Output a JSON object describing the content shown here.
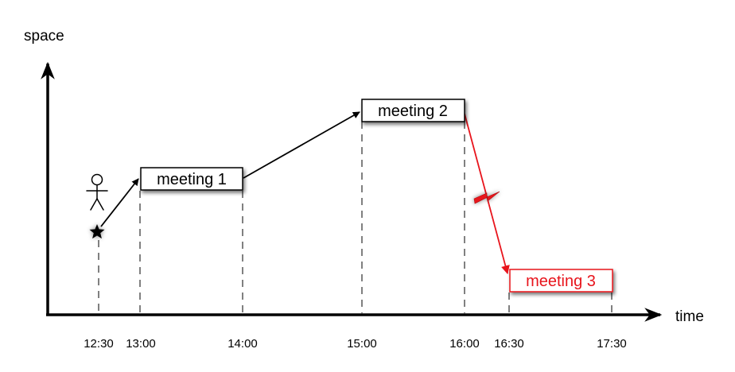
{
  "axes": {
    "x_label": "time",
    "y_label": "space"
  },
  "ticks": [
    "12:30",
    "13:00",
    "14:00",
    "15:00",
    "16:00",
    "16:30",
    "17:30"
  ],
  "meetings": [
    {
      "label": "meeting 1",
      "start": "13:00",
      "end": "14:00",
      "status": "normal"
    },
    {
      "label": "meeting 2",
      "start": "15:00",
      "end": "16:00",
      "status": "normal"
    },
    {
      "label": "meeting 3",
      "start": "16:30",
      "end": "17:30",
      "status": "conflict"
    }
  ],
  "start_time": "12:30",
  "icons": {
    "person": "stick-figure-icon",
    "start": "star-icon",
    "conflict": "lightning-bolt-icon"
  },
  "colors": {
    "normal": "#000000",
    "conflict": "#e8141c"
  }
}
